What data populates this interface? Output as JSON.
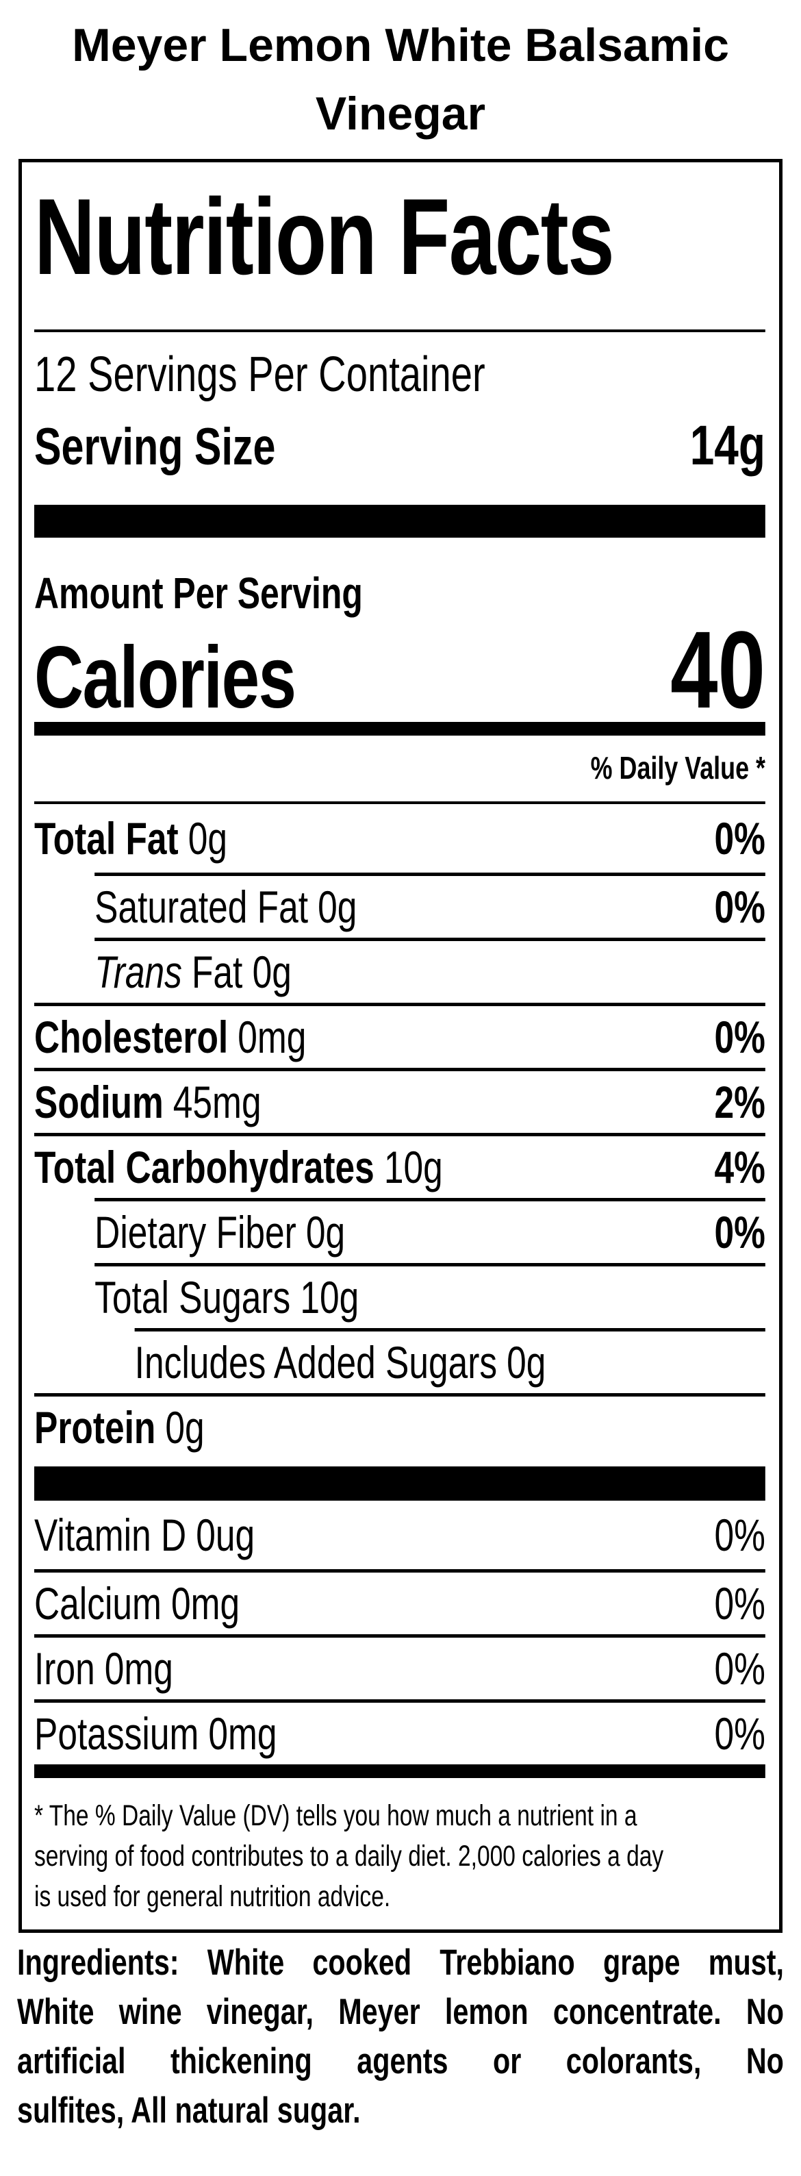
{
  "product": {
    "title_lines": [
      "Meyer Lemon White Balsamic",
      "Vinegar"
    ]
  },
  "nutrition_facts": {
    "heading": "Nutrition Facts",
    "servings_per_container": "12 Servings Per Container",
    "serving_size": {
      "label": "Serving Size",
      "value": "14g"
    },
    "amount_per_serving_label": "Amount Per Serving",
    "calories": {
      "label": "Calories",
      "value": "40"
    },
    "daily_value_header": "% Daily Value *",
    "rows": [
      {
        "name": "Total Fat",
        "amount": "0g",
        "daily_value": "0%"
      },
      {
        "name": "Saturated Fat",
        "amount": "0g",
        "daily_value": "0%"
      },
      {
        "name": "Trans",
        "amount": "Fat 0g",
        "daily_value": ""
      },
      {
        "name": "Cholesterol",
        "amount": "0mg",
        "daily_value": "0%"
      },
      {
        "name": "Sodium",
        "amount": "45mg",
        "daily_value": "2%"
      },
      {
        "name": "Total Carbohydrates",
        "amount": "10g",
        "daily_value": "4%"
      },
      {
        "name": "Dietary Fiber",
        "amount": "0g",
        "daily_value": "0%"
      },
      {
        "name": "Total Sugars",
        "amount": "10g",
        "daily_value": ""
      },
      {
        "name": "Includes Added Sugars",
        "amount": "0g",
        "daily_value": ""
      },
      {
        "name": "Protein",
        "amount": "0g",
        "daily_value": ""
      },
      {
        "name": "Vitamin D",
        "amount": "0ug",
        "daily_value": "0%"
      },
      {
        "name": "Calcium",
        "amount": "0mg",
        "daily_value": "0%"
      },
      {
        "name": "Iron",
        "amount": "0mg",
        "daily_value": "0%"
      },
      {
        "name": "Potassium",
        "amount": "0mg",
        "daily_value": "0%"
      }
    ],
    "footnote_lines": [
      "* The % Daily Value (DV) tells you how much a nutrient in a",
      "serving of food contributes to a daily diet. 2,000 calories a day",
      "is used for general nutrition advice."
    ]
  },
  "ingredients_lines": [
    "Ingredients: White cooked Trebbiano grape must,",
    "White wine vinegar, Meyer lemon concentrate. No",
    "artificial thickening agents or colorants, No",
    "sulfites, All natural sugar."
  ],
  "colors": {
    "text": "#000000",
    "background": "#ffffff"
  }
}
